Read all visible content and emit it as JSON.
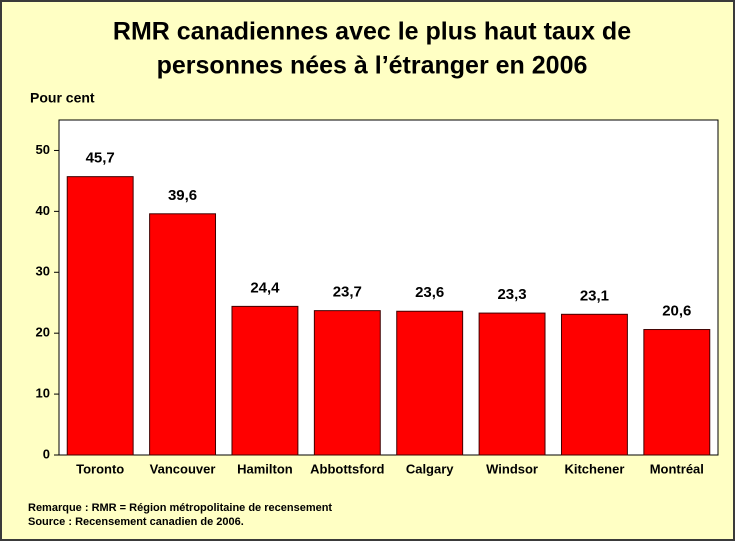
{
  "chart_data": {
    "type": "bar",
    "title": [
      "RMR canadiennes avec le plus haut taux de",
      "personnes nées à l’étranger en 2006"
    ],
    "ylabel": "Pour cent",
    "categories": [
      "Toronto",
      "Vancouver",
      "Hamilton",
      "Abbottsford",
      "Calgary",
      "Windsor",
      "Kitchener",
      "Montréal"
    ],
    "values": [
      45.7,
      39.6,
      24.4,
      23.7,
      23.6,
      23.3,
      23.1,
      20.6
    ],
    "value_labels": [
      "45,7",
      "39,6",
      "24,4",
      "23,7",
      "23,6",
      "23,3",
      "23,1",
      "20,6"
    ],
    "color": "#ff0000",
    "ylim": [
      0,
      55
    ],
    "yticks": [
      0,
      10,
      20,
      30,
      40,
      50
    ],
    "notes": [
      "Remarque : RMR = Région métropolitaine de recensement",
      "Source : Recensement canadien de 2006."
    ]
  }
}
